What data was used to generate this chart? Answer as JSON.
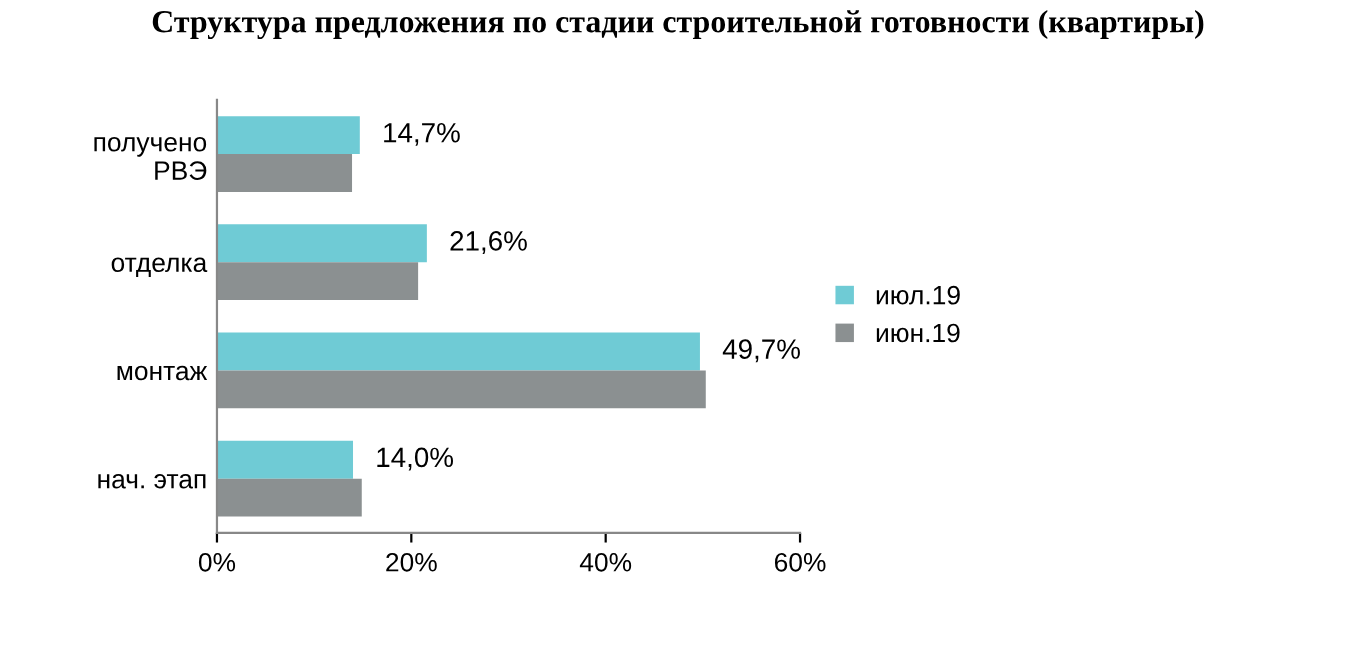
{
  "chart_data": {
    "type": "bar",
    "orientation": "horizontal",
    "title": "Структура предложения по стадии строительной готовности (квартиры)",
    "categories": [
      "получено\nРВЭ",
      "отделка",
      "монтаж",
      "нач. этап"
    ],
    "series": [
      {
        "name": "июл.19",
        "color": "#6fcbd5",
        "values": [
          14.7,
          21.6,
          49.7,
          14.0
        ],
        "value_labels": [
          "14,7%",
          "21,6%",
          "49,7%",
          "14,0%"
        ]
      },
      {
        "name": "июн.19",
        "color": "#8b9091",
        "values": [
          13.9,
          20.7,
          50.3,
          14.9
        ]
      }
    ],
    "xlim": [
      0,
      60
    ],
    "xticks": [
      {
        "value": 0,
        "label": "0%"
      },
      {
        "value": 20,
        "label": "20%"
      },
      {
        "value": 40,
        "label": "40%"
      },
      {
        "value": 60,
        "label": "60%"
      }
    ],
    "grid": false,
    "legend": "right"
  }
}
